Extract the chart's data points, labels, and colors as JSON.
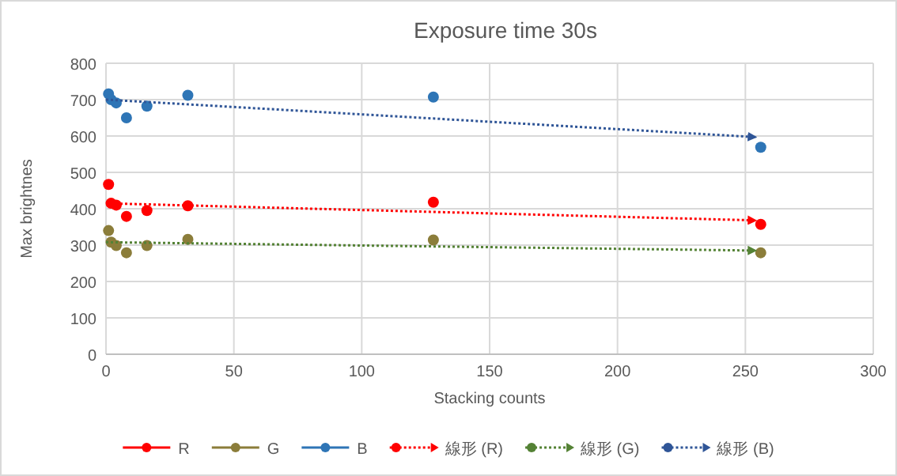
{
  "chart_data": {
    "type": "scatter",
    "title": "Exposure time 30s",
    "xlabel": "Stacking counts",
    "ylabel": "Max brightnes",
    "xlim": [
      0,
      300
    ],
    "xticks": [
      0,
      50,
      100,
      150,
      200,
      250,
      300
    ],
    "ylim": [
      0,
      800
    ],
    "yticks": [
      0,
      100,
      200,
      300,
      400,
      500,
      600,
      700,
      800
    ],
    "grid": true,
    "legend": "bottom",
    "marker": "circle",
    "series": [
      {
        "name": "R",
        "color": "#ff0000",
        "x": [
          1,
          2,
          4,
          8,
          16,
          32,
          128,
          256
        ],
        "values": [
          467,
          415,
          410,
          379,
          395,
          408,
          418,
          357
        ]
      },
      {
        "name": "G",
        "color": "#8b7d3a",
        "x": [
          1,
          2,
          4,
          8,
          16,
          32,
          128,
          256
        ],
        "values": [
          340,
          308,
          299,
          279,
          299,
          316,
          314,
          279
        ]
      },
      {
        "name": "B",
        "color": "#2e75b6",
        "x": [
          1,
          2,
          4,
          8,
          16,
          32,
          128,
          256
        ],
        "values": [
          716,
          700,
          691,
          650,
          682,
          712,
          707,
          569
        ]
      },
      {
        "name": "線形 (R)",
        "type": "line",
        "marker": "none",
        "line_style": "dotted",
        "color": "#ff0000",
        "x": [
          0,
          254
        ],
        "values": [
          415,
          368
        ]
      },
      {
        "name": "線形 (G)",
        "type": "line",
        "marker": "none",
        "line_style": "dotted",
        "color": "#548235",
        "x": [
          0,
          254
        ],
        "values": [
          308,
          285
        ]
      },
      {
        "name": "線形 (B)",
        "type": "line",
        "marker": "none",
        "line_style": "dotted",
        "color": "#2f5597",
        "x": [
          0,
          254
        ],
        "values": [
          700,
          597
        ]
      }
    ]
  }
}
